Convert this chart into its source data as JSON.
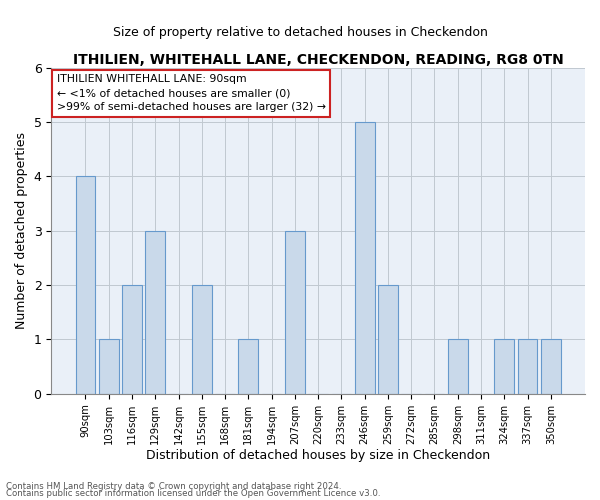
{
  "title": "ITHILIEN, WHITEHALL LANE, CHECKENDON, READING, RG8 0TN",
  "subtitle": "Size of property relative to detached houses in Checkendon",
  "xlabel": "Distribution of detached houses by size in Checkendon",
  "ylabel": "Number of detached properties",
  "categories": [
    "90sqm",
    "103sqm",
    "116sqm",
    "129sqm",
    "142sqm",
    "155sqm",
    "168sqm",
    "181sqm",
    "194sqm",
    "207sqm",
    "220sqm",
    "233sqm",
    "246sqm",
    "259sqm",
    "272sqm",
    "285sqm",
    "298sqm",
    "311sqm",
    "324sqm",
    "337sqm",
    "350sqm"
  ],
  "values": [
    4,
    1,
    2,
    3,
    0,
    2,
    0,
    1,
    0,
    3,
    0,
    0,
    5,
    2,
    0,
    0,
    1,
    0,
    1,
    1,
    1
  ],
  "bar_color": "#c9d9ea",
  "bar_edge_color": "#6699cc",
  "ylim": [
    0,
    6
  ],
  "yticks": [
    0,
    1,
    2,
    3,
    4,
    5,
    6
  ],
  "annotation_box_text_line1": "ITHILIEN WHITEHALL LANE: 90sqm",
  "annotation_box_text_line2": "← <1% of detached houses are smaller (0)",
  "annotation_box_text_line3": ">99% of semi-detached houses are larger (32) →",
  "footer_line1": "Contains HM Land Registry data © Crown copyright and database right 2024.",
  "footer_line2": "Contains public sector information licensed under the Open Government Licence v3.0.",
  "grid_color": "#c0c8d0",
  "background_color": "#eaf0f8"
}
